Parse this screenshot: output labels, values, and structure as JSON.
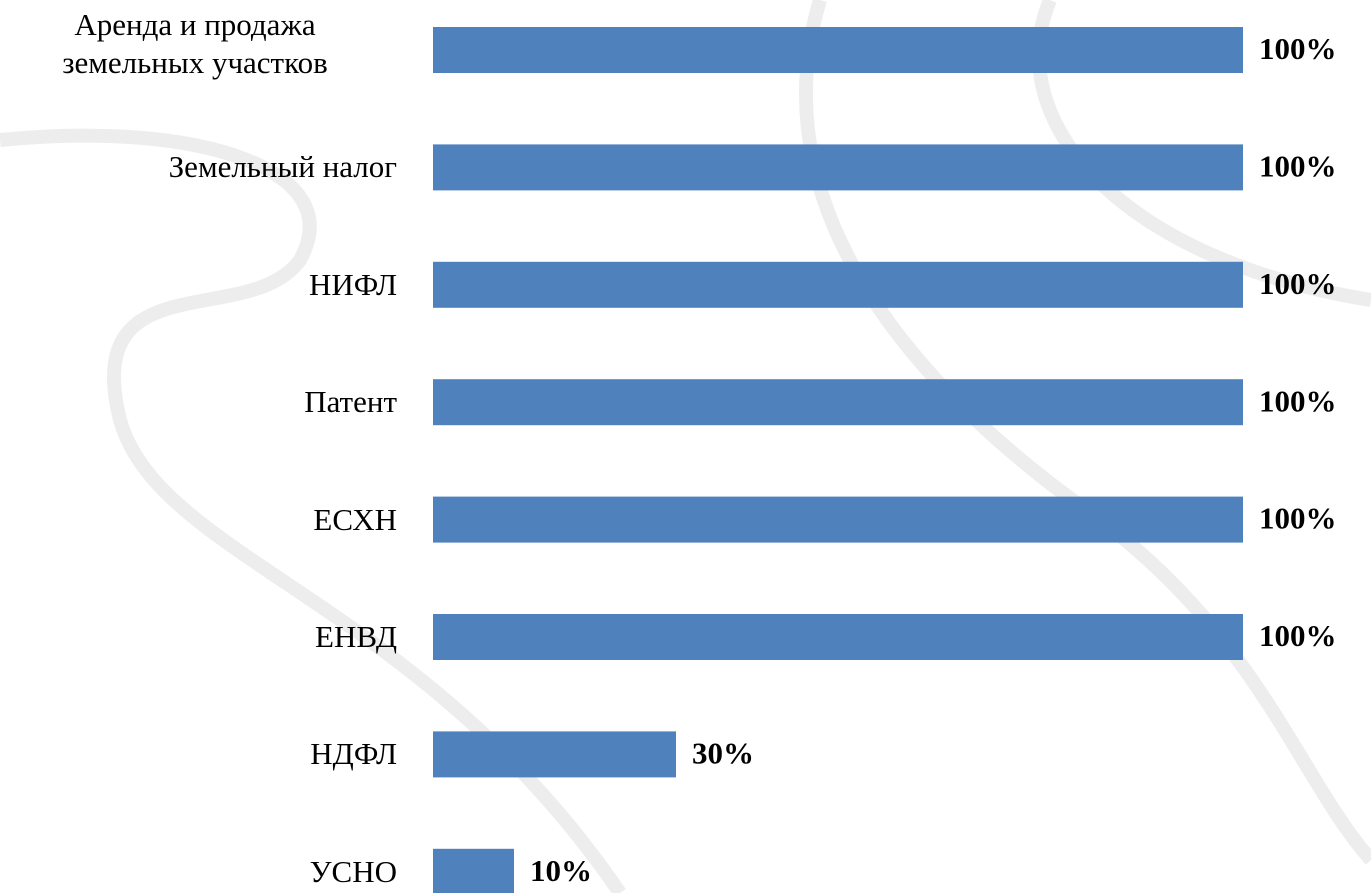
{
  "chart_data": {
    "type": "barh",
    "categories": [
      "Аренда и продажа земельных участков",
      "Земельный налог",
      "НИФЛ",
      "Патент",
      "ЕСХН",
      "ЕНВД",
      "НДФЛ",
      "УСНО"
    ],
    "values": [
      100,
      100,
      100,
      100,
      100,
      100,
      30,
      10
    ],
    "value_labels": [
      "100%",
      "100%",
      "100%",
      "100%",
      "100%",
      "100%",
      "30%",
      "10%"
    ],
    "color": "#4f81bd"
  }
}
